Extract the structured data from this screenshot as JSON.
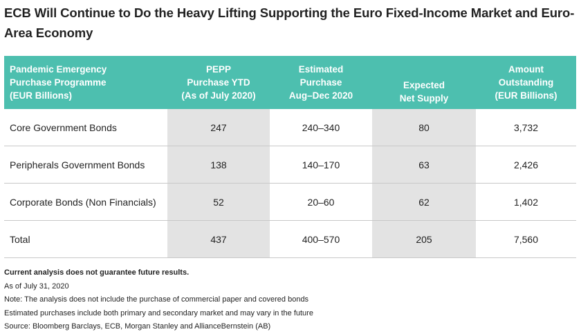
{
  "title": "ECB Will Continue to Do the Heavy Lifting Supporting the Euro Fixed-Income Market and Euro-Area Economy",
  "table": {
    "headers": [
      [
        "Pandemic Emergency",
        "Purchase Programme",
        "(EUR Billions)"
      ],
      [
        "PEPP",
        "Purchase YTD",
        "(As of July 2020)"
      ],
      [
        "Estimated",
        "Purchase",
        "Aug–Dec 2020"
      ],
      [
        "Expected",
        "Net Supply"
      ],
      [
        "Amount",
        "Outstanding",
        "(EUR Billions)"
      ]
    ],
    "rows": [
      [
        "Core Government Bonds",
        "247",
        "240–340",
        "80",
        "3,732"
      ],
      [
        "Peripherals Government Bonds",
        "138",
        "140–170",
        "63",
        "2,426"
      ],
      [
        "Corporate Bonds (Non Financials)",
        "52",
        "20–60",
        "62",
        "1,402"
      ],
      [
        "Total",
        "437",
        "400–570",
        "205",
        "7,560"
      ]
    ]
  },
  "notes": {
    "disclaimer": "Current analysis does not guarantee future results.",
    "lines": [
      "As of July 31, 2020",
      "Note: The analysis does not include the purchase of commercial paper and covered bonds",
      "Estimated purchases include both primary and secondary market and may vary in the future",
      "Source: Bloomberg Barclays, ECB, Morgan Stanley and AllianceBernstein (AB)"
    ]
  },
  "colors": {
    "header_bg": "#4dbfaf",
    "shaded_column_bg": "#e3e3e3"
  }
}
